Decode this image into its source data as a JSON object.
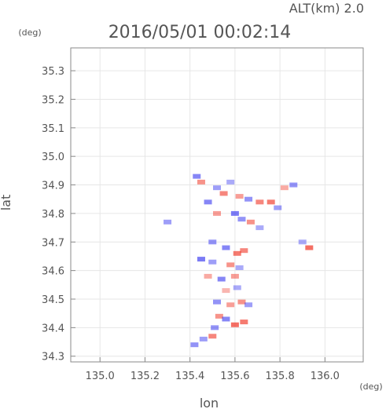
{
  "header": {
    "altitude_label": "ALT(km) 2.0",
    "timestamp": "2016/05/01 00:02:14"
  },
  "chart_data": {
    "type": "heatmap",
    "title": "2016/05/01 00:02:14",
    "xlabel": "lon",
    "ylabel": "lat",
    "x_unit": "(deg)",
    "y_unit": "(deg)",
    "xlim": [
      134.87,
      136.17
    ],
    "ylim": [
      34.28,
      35.38
    ],
    "xticks": [
      "135.0",
      "135.2",
      "135.4",
      "135.6",
      "135.8",
      "136.0"
    ],
    "yticks": [
      "34.3",
      "34.4",
      "34.5",
      "34.6",
      "34.7",
      "34.8",
      "34.9",
      "35.0",
      "35.1",
      "35.2",
      "35.3"
    ],
    "grid": true,
    "colors": {
      "positive": "#f03a2a",
      "negative": "#3a3af0",
      "axis": "#8a8a8a",
      "grid": "#e6e6e6"
    },
    "echo_cells": [
      {
        "lon": 135.43,
        "lat": 34.93,
        "v": -0.6
      },
      {
        "lon": 135.45,
        "lat": 34.91,
        "v": 0.5
      },
      {
        "lon": 135.52,
        "lat": 34.89,
        "v": -0.4
      },
      {
        "lon": 135.55,
        "lat": 34.87,
        "v": 0.6
      },
      {
        "lon": 135.58,
        "lat": 34.91,
        "v": -0.3
      },
      {
        "lon": 135.62,
        "lat": 34.86,
        "v": 0.4
      },
      {
        "lon": 135.66,
        "lat": 34.85,
        "v": -0.5
      },
      {
        "lon": 135.71,
        "lat": 34.84,
        "v": 0.6
      },
      {
        "lon": 135.76,
        "lat": 34.84,
        "v": 0.7
      },
      {
        "lon": 135.79,
        "lat": 34.82,
        "v": -0.4
      },
      {
        "lon": 135.86,
        "lat": 34.9,
        "v": -0.5
      },
      {
        "lon": 135.82,
        "lat": 34.89,
        "v": 0.3
      },
      {
        "lon": 135.48,
        "lat": 34.84,
        "v": -0.6
      },
      {
        "lon": 135.52,
        "lat": 34.8,
        "v": 0.4
      },
      {
        "lon": 135.6,
        "lat": 34.8,
        "v": -0.7
      },
      {
        "lon": 135.63,
        "lat": 34.78,
        "v": -0.5
      },
      {
        "lon": 135.67,
        "lat": 34.77,
        "v": 0.5
      },
      {
        "lon": 135.71,
        "lat": 34.75,
        "v": -0.3
      },
      {
        "lon": 135.3,
        "lat": 34.77,
        "v": -0.4
      },
      {
        "lon": 135.93,
        "lat": 34.68,
        "v": 0.8
      },
      {
        "lon": 135.9,
        "lat": 34.7,
        "v": -0.3
      },
      {
        "lon": 135.5,
        "lat": 34.7,
        "v": -0.5
      },
      {
        "lon": 135.56,
        "lat": 34.68,
        "v": -0.6
      },
      {
        "lon": 135.61,
        "lat": 34.66,
        "v": 0.7
      },
      {
        "lon": 135.64,
        "lat": 34.67,
        "v": 0.6
      },
      {
        "lon": 135.45,
        "lat": 34.64,
        "v": -0.7
      },
      {
        "lon": 135.5,
        "lat": 34.63,
        "v": -0.4
      },
      {
        "lon": 135.58,
        "lat": 34.62,
        "v": 0.5
      },
      {
        "lon": 135.62,
        "lat": 34.61,
        "v": -0.3
      },
      {
        "lon": 135.48,
        "lat": 34.58,
        "v": 0.3
      },
      {
        "lon": 135.54,
        "lat": 34.57,
        "v": -0.6
      },
      {
        "lon": 135.6,
        "lat": 34.58,
        "v": 0.4
      },
      {
        "lon": 135.56,
        "lat": 34.53,
        "v": 0.2
      },
      {
        "lon": 135.61,
        "lat": 34.54,
        "v": -0.3
      },
      {
        "lon": 135.52,
        "lat": 34.49,
        "v": -0.5
      },
      {
        "lon": 135.58,
        "lat": 34.48,
        "v": 0.4
      },
      {
        "lon": 135.63,
        "lat": 34.49,
        "v": 0.5
      },
      {
        "lon": 135.66,
        "lat": 34.48,
        "v": -0.4
      },
      {
        "lon": 135.53,
        "lat": 34.44,
        "v": 0.5
      },
      {
        "lon": 135.56,
        "lat": 34.43,
        "v": -0.6
      },
      {
        "lon": 135.6,
        "lat": 34.41,
        "v": 0.8
      },
      {
        "lon": 135.64,
        "lat": 34.42,
        "v": 0.7
      },
      {
        "lon": 135.51,
        "lat": 34.4,
        "v": -0.5
      },
      {
        "lon": 135.5,
        "lat": 34.37,
        "v": 0.6
      },
      {
        "lon": 135.46,
        "lat": 34.36,
        "v": -0.4
      },
      {
        "lon": 135.42,
        "lat": 34.34,
        "v": -0.5
      }
    ]
  }
}
